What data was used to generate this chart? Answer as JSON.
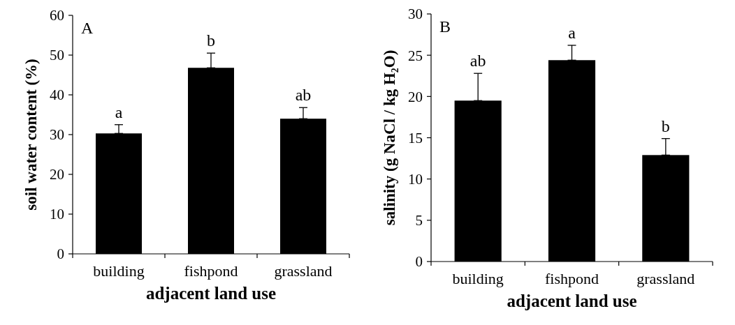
{
  "chart_data": [
    {
      "type": "bar",
      "title": "A",
      "xlabel": "adjacent land use",
      "ylabel": "soil water content (%)",
      "categories": [
        "building",
        "fishpond",
        "grassland"
      ],
      "values": [
        30.3,
        46.8,
        34.0
      ],
      "errors": [
        [
          30.3,
          32.5
        ],
        [
          46.8,
          50.5
        ],
        [
          34.0,
          36.8
        ]
      ],
      "color": "#000000",
      "ylim": [
        0,
        60
      ],
      "yticks": [
        0,
        10,
        20,
        30,
        40,
        50,
        60
      ],
      "grid": false,
      "annotations": [
        {
          "text": "a",
          "x": "building",
          "y": 32.5
        },
        {
          "text": "b",
          "x": "fishpond",
          "y": 50.5
        },
        {
          "text": "ab",
          "x": "grassland",
          "y": 36.8
        }
      ]
    },
    {
      "type": "bar",
      "title": "B",
      "xlabel": "adjacent land use",
      "ylabel": "salinity (g NaCl / kg H₂O)",
      "categories": [
        "building",
        "fishpond",
        "grassland"
      ],
      "values": [
        19.5,
        24.4,
        12.9
      ],
      "errors": [
        [
          19.5,
          22.8
        ],
        [
          24.4,
          26.2
        ],
        [
          12.9,
          14.9
        ]
      ],
      "color": "#000000",
      "ylim": [
        0,
        30
      ],
      "yticks": [
        0,
        5,
        10,
        15,
        20,
        25,
        30
      ],
      "grid": false,
      "annotations": [
        {
          "text": "ab",
          "x": "building",
          "y": 22.8
        },
        {
          "text": "a",
          "x": "fishpond",
          "y": 26.2
        },
        {
          "text": "b",
          "x": "grassland",
          "y": 14.9
        }
      ]
    }
  ]
}
